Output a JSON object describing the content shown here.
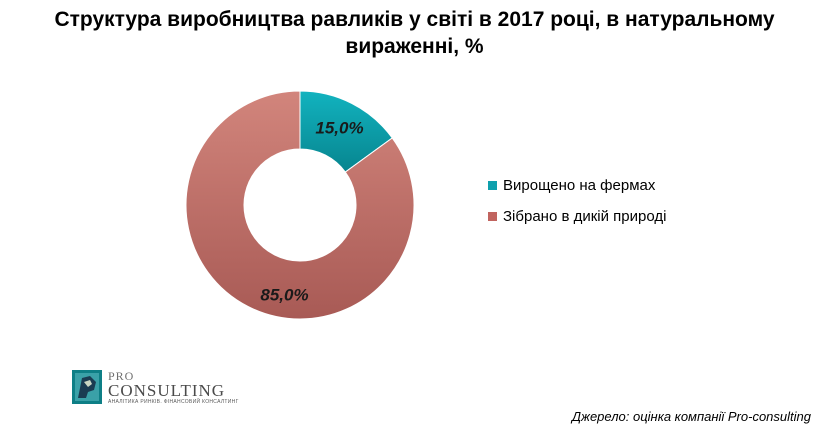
{
  "chart_data": {
    "type": "pie",
    "title": "Структура виробництва равликів у світі в 2017 році, в натуральному вираженні, %",
    "categories": [
      "Вирощено  на фермах",
      "Зібрано  в дикій природі"
    ],
    "values": [
      15.0,
      85.0
    ],
    "data_labels": [
      "15,0%",
      "85,0%"
    ],
    "colors": [
      "#0fa0ad",
      "#c1645f"
    ],
    "donut": true,
    "legend_position": "right"
  },
  "logo": {
    "pro": "PRO",
    "consulting": "CONSULTING",
    "tagline": "АНАЛІТИКА РИНКІВ. ФІНАНСОВИЙ КОНСАЛТИНГ"
  },
  "source": "Джерело: оцінка компанії Pro-consulting"
}
